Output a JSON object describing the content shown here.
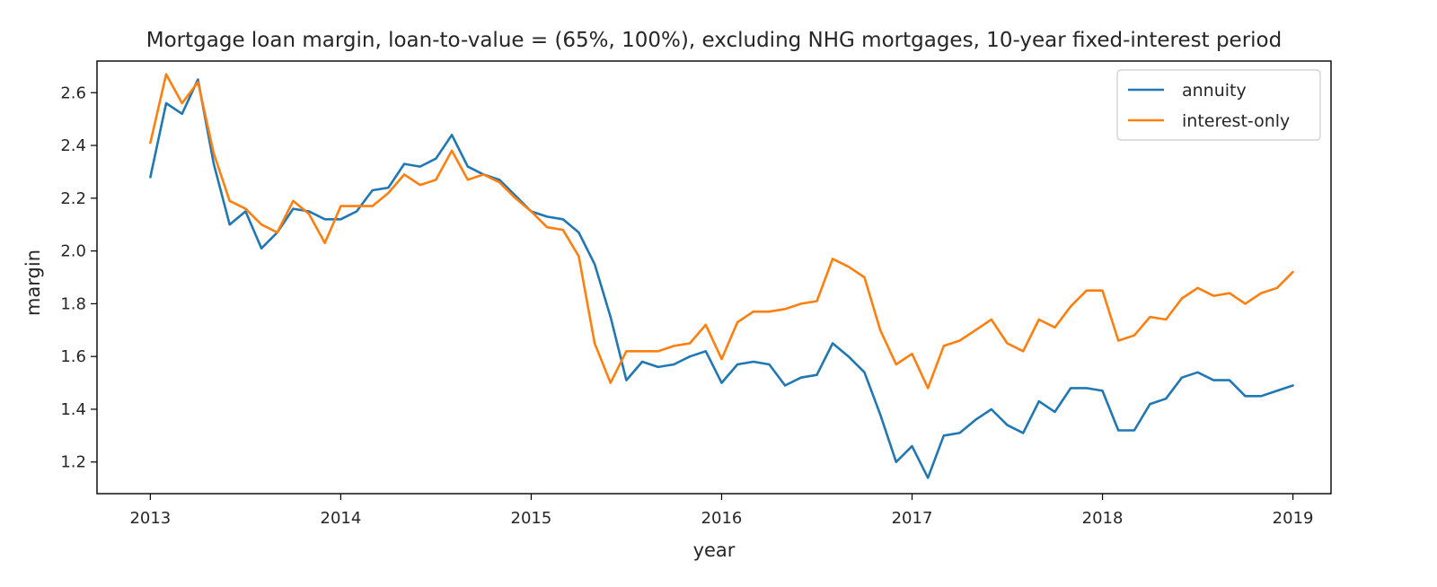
{
  "chart_data": {
    "type": "line",
    "title": "Mortgage loan margin, loan-to-value = (65%, 100%), excluding NHG mortgages, 10-year fixed-interest period",
    "xlabel": "year",
    "ylabel": "margin",
    "xlim": [
      2012.72,
      2019.2
    ],
    "ylim": [
      1.08,
      2.72
    ],
    "x_ticks": [
      2013,
      2014,
      2015,
      2016,
      2017,
      2018,
      2019
    ],
    "x_tick_labels": [
      "2013",
      "2014",
      "2015",
      "2016",
      "2017",
      "2018",
      "2019"
    ],
    "y_ticks": [
      1.2,
      1.4,
      1.6,
      1.8,
      2.0,
      2.2,
      2.4,
      2.6
    ],
    "y_tick_labels": [
      "1.2",
      "1.4",
      "1.6",
      "1.8",
      "2.0",
      "2.2",
      "2.4",
      "2.6"
    ],
    "grid": false,
    "legend_position": "top-right",
    "x_start": 2013.0,
    "x_step": 0.08333,
    "series": [
      {
        "name": "annuity",
        "color": "#1f77b4",
        "values": [
          2.28,
          2.56,
          2.52,
          2.65,
          2.33,
          2.1,
          2.15,
          2.01,
          2.07,
          2.16,
          2.15,
          2.12,
          2.12,
          2.15,
          2.23,
          2.24,
          2.33,
          2.32,
          2.35,
          2.44,
          2.32,
          2.29,
          2.27,
          2.21,
          2.15,
          2.13,
          2.12,
          2.07,
          1.95,
          1.75,
          1.51,
          1.58,
          1.56,
          1.57,
          1.6,
          1.62,
          1.5,
          1.57,
          1.58,
          1.57,
          1.49,
          1.52,
          1.53,
          1.65,
          1.6,
          1.54,
          1.38,
          1.2,
          1.26,
          1.14,
          1.3,
          1.31,
          1.36,
          1.4,
          1.34,
          1.31,
          1.43,
          1.39,
          1.48,
          1.48,
          1.47,
          1.32,
          1.32,
          1.42,
          1.44,
          1.52,
          1.54,
          1.51,
          1.51,
          1.45,
          1.45,
          1.47,
          1.49
        ]
      },
      {
        "name": "interest-only",
        "color": "#ff7f0e",
        "values": [
          2.41,
          2.67,
          2.56,
          2.64,
          2.37,
          2.19,
          2.16,
          2.1,
          2.07,
          2.19,
          2.14,
          2.03,
          2.17,
          2.17,
          2.17,
          2.22,
          2.29,
          2.25,
          2.27,
          2.38,
          2.27,
          2.29,
          2.26,
          2.2,
          2.15,
          2.09,
          2.08,
          1.98,
          1.65,
          1.5,
          1.62,
          1.62,
          1.62,
          1.64,
          1.65,
          1.72,
          1.59,
          1.73,
          1.77,
          1.77,
          1.78,
          1.8,
          1.81,
          1.97,
          1.94,
          1.9,
          1.7,
          1.57,
          1.61,
          1.48,
          1.64,
          1.66,
          1.7,
          1.74,
          1.65,
          1.62,
          1.74,
          1.71,
          1.79,
          1.85,
          1.85,
          1.66,
          1.68,
          1.75,
          1.74,
          1.82,
          1.86,
          1.83,
          1.84,
          1.8,
          1.84,
          1.86,
          1.92
        ]
      }
    ]
  }
}
